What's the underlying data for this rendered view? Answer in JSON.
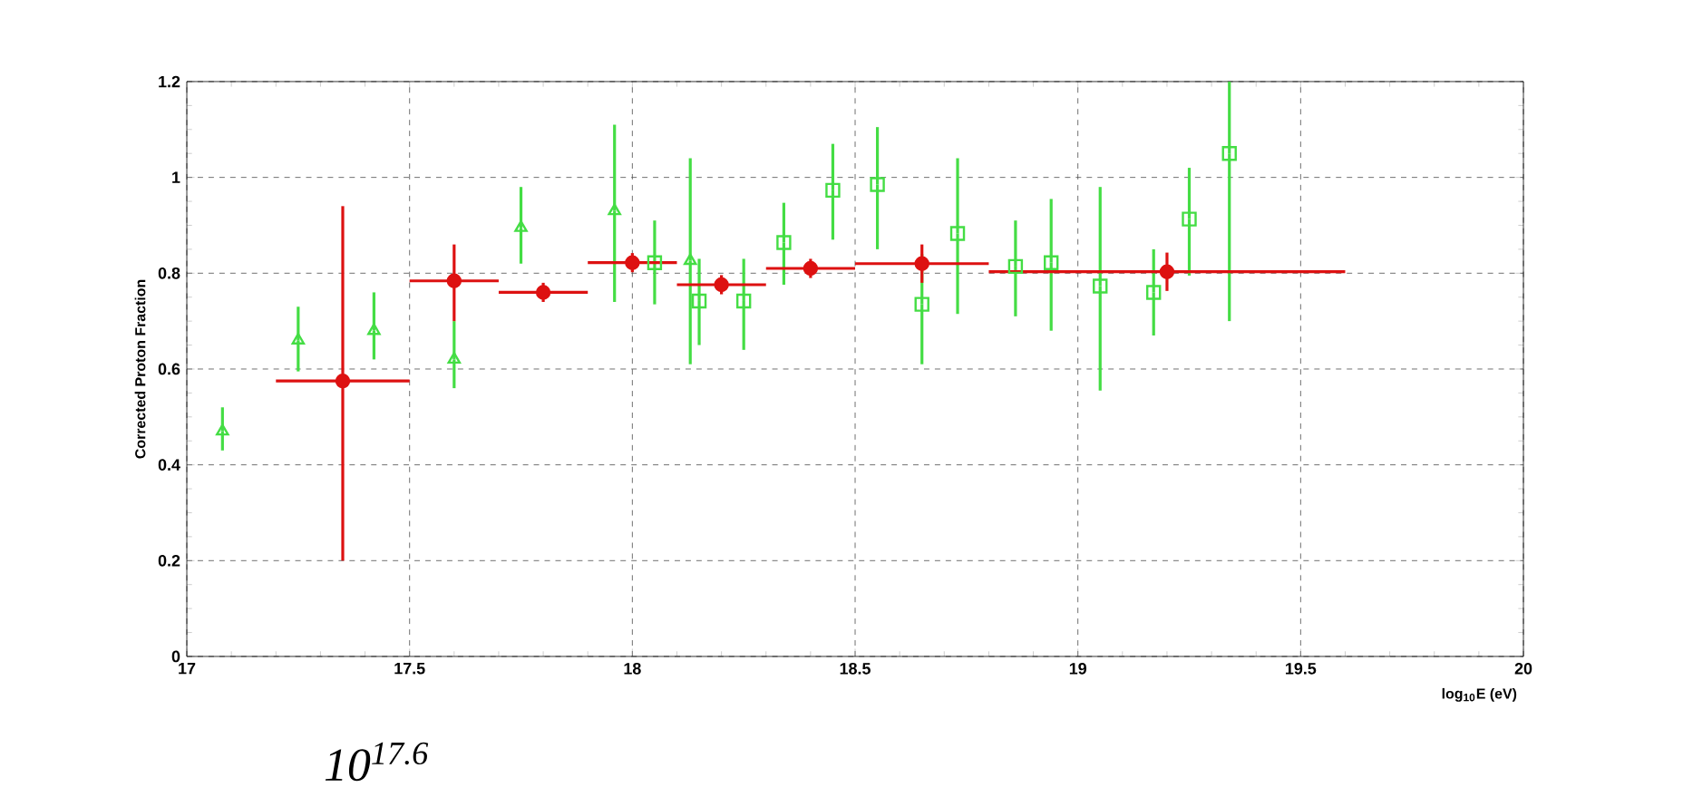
{
  "chart_data": {
    "type": "scatter",
    "ylabel": "Corrected Proton Fraction",
    "xlabel": "log$_{10}$E (eV)",
    "annotations": [
      "10$^{17.6}$"
    ],
    "xlim": [
      17,
      20
    ],
    "xticks": [
      17,
      17.5,
      18,
      18.5,
      19,
      19.5,
      20
    ],
    "ylim": [
      0,
      1.2
    ],
    "yticks": [
      0,
      0.2,
      0.4,
      0.6,
      0.8,
      1,
      1.2
    ],
    "grid": true,
    "series": [
      {
        "color": "#44dd44",
        "marker": "triangle",
        "x": [
          17.08,
          17.25,
          17.42,
          17.6,
          17.75,
          17.96,
          18.13
        ],
        "values": [
          0.47,
          0.66,
          0.68,
          0.62,
          0.895,
          0.93,
          0.826
        ],
        "errors": [
          [
            0.43,
            0.52
          ],
          [
            0.595,
            0.73
          ],
          [
            0.62,
            0.76
          ],
          [
            0.56,
            0.7
          ],
          [
            0.82,
            0.98
          ],
          [
            0.74,
            1.11
          ],
          [
            0.61,
            1.04
          ]
        ]
      },
      {
        "color": "#44dd44",
        "marker": "square",
        "x": [
          18.05,
          18.15,
          18.25,
          18.34,
          18.45,
          18.55,
          18.65,
          18.73,
          18.86,
          18.94,
          19.05,
          19.17,
          19.25,
          19.34
        ],
        "values": [
          0.822,
          0.742,
          0.742,
          0.864,
          0.973,
          0.985,
          0.735,
          0.883,
          0.814,
          0.822,
          0.773,
          0.76,
          0.913,
          1.05
        ],
        "errors": [
          [
            0.735,
            0.91
          ],
          [
            0.65,
            0.83
          ],
          [
            0.64,
            0.83
          ],
          [
            0.776,
            0.947
          ],
          [
            0.87,
            1.07
          ],
          [
            0.85,
            1.105
          ],
          [
            0.61,
            0.84
          ],
          [
            0.715,
            1.04
          ],
          [
            0.71,
            0.91
          ],
          [
            0.68,
            0.955
          ],
          [
            0.555,
            0.98
          ],
          [
            0.67,
            0.85
          ],
          [
            0.795,
            1.02
          ],
          [
            0.7,
            1.2
          ]
        ]
      },
      {
        "color": "#dd1111",
        "marker": "circle",
        "x": [
          17.35,
          17.6,
          17.8,
          18.0,
          18.2,
          18.4,
          18.65,
          19.2
        ],
        "values": [
          0.575,
          0.784,
          0.76,
          0.822,
          0.776,
          0.81,
          0.82,
          0.803
        ],
        "errors": [
          [
            0.2,
            0.94
          ],
          [
            0.7,
            0.86
          ],
          0.02,
          0.02,
          0.02,
          0.02,
          0.04,
          0.04
        ],
        "xerrors": [
          0.15,
          0.1,
          0.1,
          0.1,
          0.1,
          0.1,
          0.15,
          0.4
        ]
      }
    ]
  }
}
